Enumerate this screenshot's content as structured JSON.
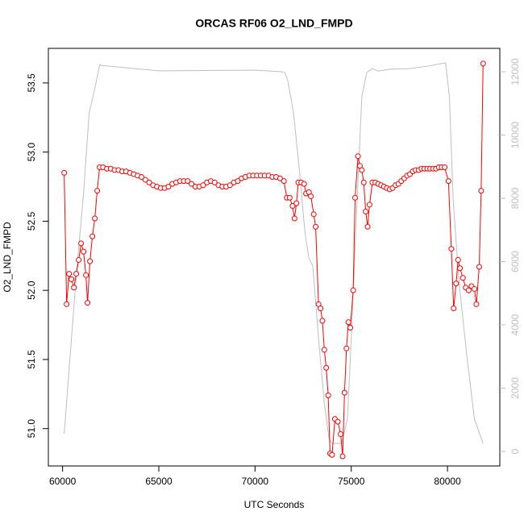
{
  "chart_data": {
    "type": "line",
    "title": "ORCAS RF06 O2_LND_FMPD",
    "x_label": "UTC Seconds",
    "y_label": "O2_LND_FMPD",
    "xlim": [
      59261,
      82719
    ],
    "xticks": [
      60000,
      65000,
      70000,
      75000,
      80000
    ],
    "ylim": [
      50.73,
      53.75
    ],
    "yticks": [
      {
        "value": 51,
        "label": "51.0"
      },
      51.5,
      {
        "value": 52,
        "label": "52.0"
      },
      52.5,
      {
        "value": 53,
        "label": "53.0"
      },
      53.5
    ],
    "y2lim": [
      -459,
      12739
    ],
    "y2ticks": [
      0,
      2000,
      4000,
      6000,
      8000,
      10000,
      12000
    ],
    "series": [
      {
        "color": "#ff0000",
        "markers": true,
        "x": [
          60084,
          60209,
          60335,
          60460,
          60586,
          60711,
          60837,
          60962,
          61088,
          61213,
          61297,
          61423,
          61548,
          61674,
          61799,
          61925,
          62100,
          62300,
          62500,
          62700,
          62900,
          63100,
          63300,
          63500,
          63700,
          63900,
          64100,
          64300,
          64500,
          64700,
          64900,
          65100,
          65300,
          65500,
          65700,
          65900,
          66100,
          66300,
          66500,
          66700,
          66900,
          67100,
          67300,
          67500,
          67700,
          67900,
          68100,
          68300,
          68500,
          68700,
          68900,
          69100,
          69300,
          69500,
          69700,
          69900,
          70100,
          70300,
          70500,
          70700,
          70900,
          71100,
          71300,
          71500,
          71650,
          71800,
          71950,
          72050,
          72150,
          72250,
          72400,
          72550,
          72650,
          72800,
          72900,
          73050,
          73150,
          73300,
          73400,
          73500,
          73600,
          73700,
          73800,
          73900,
          74000,
          74150,
          74300,
          74450,
          74550,
          74650,
          74750,
          74850,
          74950,
          75100,
          75200,
          75350,
          75450,
          75550,
          75650,
          75750,
          75850,
          75950,
          76100,
          76250,
          76400,
          76550,
          76700,
          76850,
          77000,
          77150,
          77300,
          77450,
          77600,
          77750,
          77900,
          78050,
          78200,
          78350,
          78500,
          78650,
          78800,
          78950,
          79100,
          79250,
          79400,
          79550,
          79700,
          79850,
          80050,
          80200,
          80320,
          80450,
          80550,
          80650,
          80800,
          80950,
          81100,
          81250,
          81400,
          81500,
          81650,
          81750,
          81850
        ],
        "values": [
          52.85,
          51.9,
          52.12,
          52.08,
          52.02,
          52.12,
          52.22,
          52.34,
          52.28,
          52.11,
          51.91,
          52.21,
          52.39,
          52.52,
          52.72,
          52.89,
          52.89,
          52.88,
          52.88,
          52.87,
          52.87,
          52.86,
          52.86,
          52.85,
          52.84,
          52.83,
          52.82,
          52.8,
          52.78,
          52.76,
          52.75,
          52.74,
          52.74,
          52.75,
          52.77,
          52.78,
          52.79,
          52.79,
          52.79,
          52.77,
          52.75,
          52.75,
          52.76,
          52.78,
          52.79,
          52.78,
          52.76,
          52.75,
          52.75,
          52.76,
          52.78,
          52.79,
          52.81,
          52.82,
          52.83,
          52.83,
          52.83,
          52.83,
          52.83,
          52.83,
          52.82,
          52.82,
          52.81,
          52.79,
          52.67,
          52.67,
          52.61,
          52.52,
          52.63,
          52.78,
          52.78,
          52.77,
          52.7,
          52.71,
          52.68,
          52.55,
          52.46,
          51.9,
          51.87,
          51.78,
          51.57,
          51.44,
          51.24,
          50.82,
          50.81,
          51.07,
          51.05,
          50.96,
          50.8,
          51.26,
          51.58,
          51.77,
          51.73,
          52.0,
          52.67,
          52.97,
          52.9,
          52.87,
          52.78,
          52.57,
          52.46,
          52.62,
          52.78,
          52.78,
          52.77,
          52.76,
          52.75,
          52.74,
          52.73,
          52.74,
          52.76,
          52.77,
          52.79,
          52.81,
          52.83,
          52.84,
          52.86,
          52.87,
          52.87,
          52.88,
          52.88,
          52.88,
          52.88,
          52.88,
          52.88,
          52.89,
          52.89,
          52.89,
          52.79,
          52.3,
          51.87,
          52.05,
          52.22,
          52.16,
          52.09,
          52.02,
          52.0,
          52.03,
          52.01,
          51.9,
          52.17,
          52.72,
          53.64
        ]
      },
      {
        "color": "#bebebe",
        "axis": "y2",
        "markers": false,
        "x": [
          60084,
          60460,
          60754,
          61088,
          61381,
          61716,
          61925,
          62000,
          65000,
          70000,
          71400,
          71550,
          71700,
          72000,
          72300,
          72600,
          72800,
          73000,
          73300,
          73600,
          73850,
          74000,
          74500,
          74800,
          75000,
          75300,
          75550,
          75800,
          76100,
          76400,
          77000,
          78000,
          79000,
          79900,
          80100,
          80300,
          80600,
          81000,
          81400,
          81850
        ],
        "values": [
          560,
          3567,
          5860,
          8150,
          10700,
          11590,
          12230,
          12200,
          12030,
          12050,
          12000,
          11970,
          11720,
          10700,
          8920,
          6880,
          6110,
          5860,
          3570,
          1530,
          380,
          255,
          255,
          1020,
          3570,
          7900,
          11210,
          11970,
          12100,
          12020,
          12080,
          12100,
          12180,
          12280,
          11210,
          7900,
          5350,
          3060,
          1020,
          255
        ]
      }
    ]
  }
}
